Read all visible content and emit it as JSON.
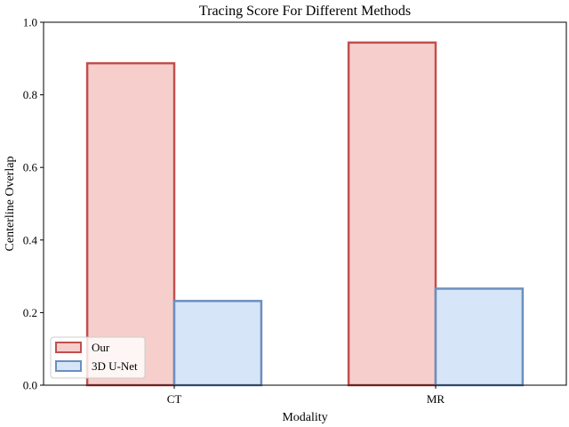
{
  "chart_data": {
    "type": "bar",
    "title": "Tracing Score For Different Methods",
    "xlabel": "Modality",
    "ylabel": "Centerline Overlap",
    "categories": [
      "CT",
      "MR"
    ],
    "series": [
      {
        "name": "Our",
        "values": [
          0.887,
          0.944
        ],
        "fill": "#f6cfcc",
        "stroke": "#c0504d"
      },
      {
        "name": "3D U-Net",
        "values": [
          0.232,
          0.266
        ],
        "fill": "#d6e5f8",
        "stroke": "#6b8fc0"
      }
    ],
    "ylim": [
      0,
      1.0
    ],
    "yticks": [
      0.0,
      0.2,
      0.4,
      0.6,
      0.8,
      1.0
    ],
    "ytick_labels": [
      "0.0",
      "0.2",
      "0.4",
      "0.6",
      "0.8",
      "1.0"
    ],
    "grid": false,
    "legend_position": "lower-left"
  }
}
